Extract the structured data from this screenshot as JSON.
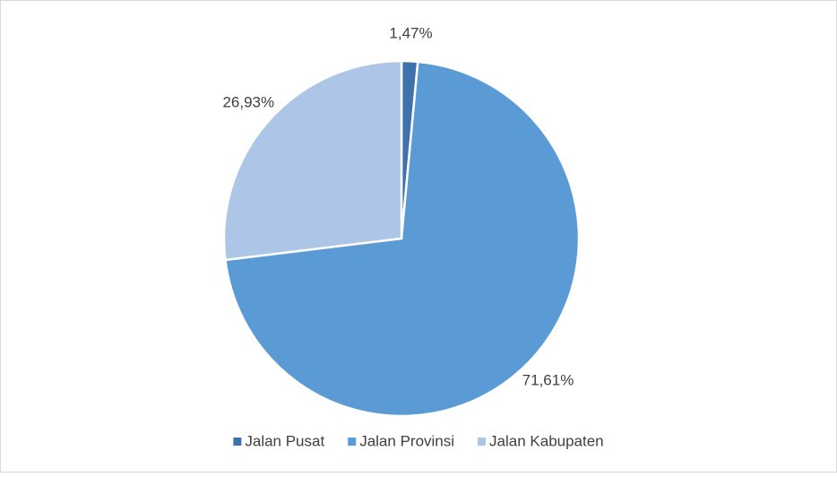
{
  "chart_data": {
    "type": "pie",
    "categories": [
      "Jalan Pusat",
      "Jalan Provinsi",
      "Jalan Kabupaten"
    ],
    "values": [
      1.47,
      71.61,
      26.93
    ],
    "value_labels": [
      "1,47%",
      "71,61%",
      "26,93%"
    ],
    "colors": [
      "#3f72ad",
      "#5b9bd5",
      "#adc5e7"
    ],
    "legend": "bottom"
  }
}
